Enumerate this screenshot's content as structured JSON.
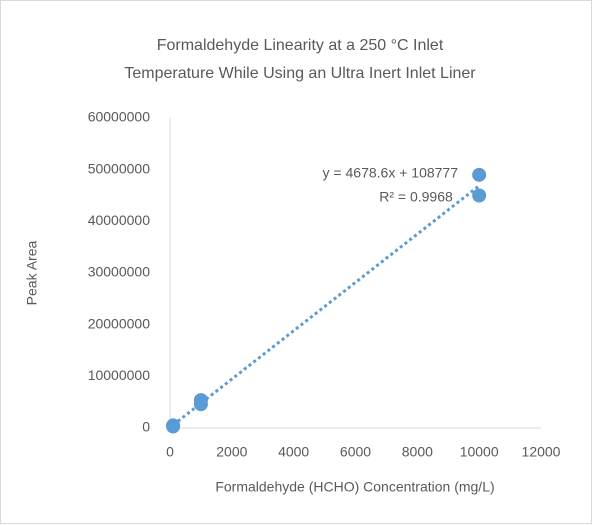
{
  "chart_data": {
    "type": "scatter",
    "title": [
      "Formaldehyde Linearity at a 250 °C Inlet",
      "Temperature While Using an Ultra Inert Inlet Liner"
    ],
    "x_label": "Formaldehyde (HCHO) Concentration (mg/L)",
    "y_label": "Peak Area",
    "series": [
      {
        "name": "Peak Area",
        "color": "#5b9bd5",
        "x": [
          100,
          100,
          1000,
          1000,
          10000,
          10000
        ],
        "values": [
          300000,
          500000,
          4600000,
          5400000,
          45000000,
          49000000
        ]
      }
    ],
    "trendline": {
      "slope": 4678.6,
      "intercept": 108777,
      "equation": "y = 4678.6x + 108777",
      "r2": "R² = 0.9968",
      "style": "dotted"
    },
    "xlim": [
      0,
      12000
    ],
    "xticks": [
      0,
      2000,
      4000,
      6000,
      8000,
      10000,
      12000
    ],
    "ylim": [
      0,
      60000000
    ],
    "yticks": [
      0,
      10000000,
      20000000,
      30000000,
      40000000,
      50000000,
      60000000
    ],
    "grid": false
  }
}
